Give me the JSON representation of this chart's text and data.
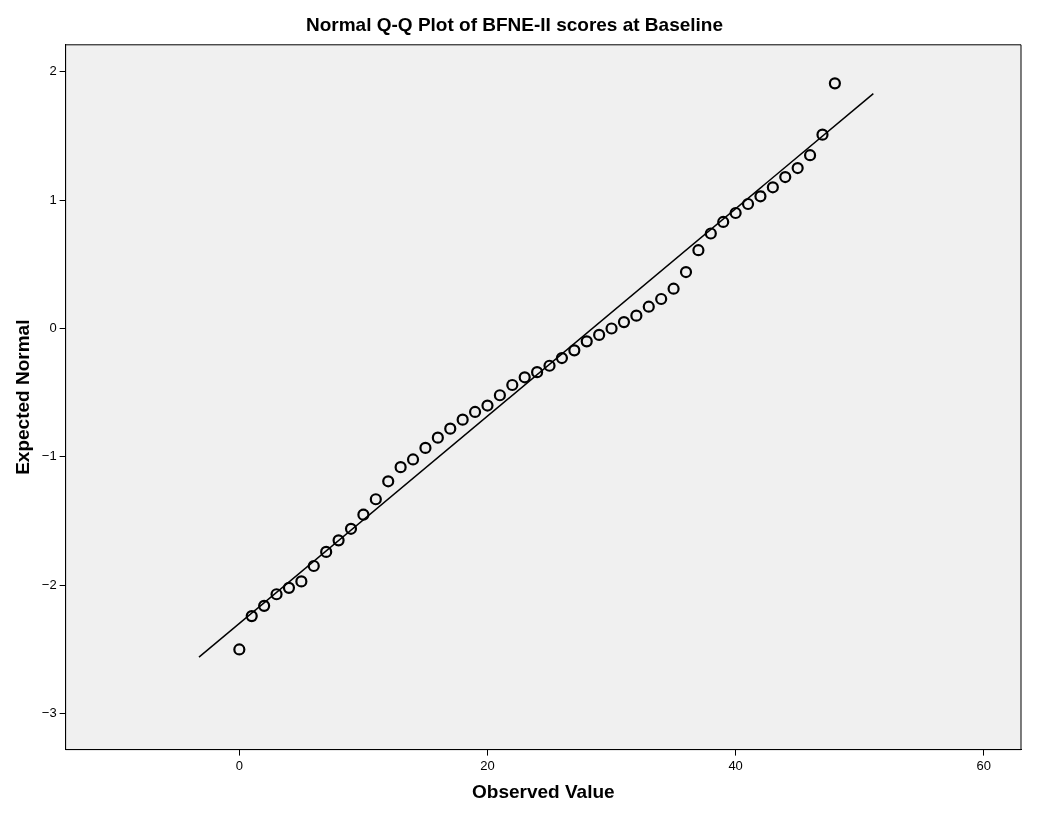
{
  "chart_data": {
    "type": "scatter",
    "title": "Normal Q-Q Plot of BFNE-II scores at Baseline",
    "xlabel": "Observed Value",
    "ylabel": "Expected Normal",
    "xlim": [
      -14,
      63
    ],
    "ylim": [
      -3.28,
      2.21
    ],
    "xticks": [
      0,
      20,
      40,
      60
    ],
    "yticks": [
      -3,
      -2,
      -1,
      0,
      1,
      2
    ],
    "grid": false,
    "legend": false,
    "series": [
      {
        "marker": "circle",
        "color": "#000000",
        "x": [
          0,
          1,
          2,
          3,
          4,
          5,
          6,
          7,
          8,
          9,
          10,
          11,
          12,
          13,
          14,
          15,
          16,
          17,
          18,
          19,
          20,
          21,
          22,
          23,
          24,
          25,
          26,
          27,
          28,
          29,
          30,
          31,
          32,
          33,
          34,
          35,
          36,
          37,
          38,
          39,
          40,
          41,
          42,
          43,
          44,
          45,
          46,
          47,
          48
        ],
        "values": [
          -2.5,
          -2.24,
          -2.16,
          -2.07,
          -2.02,
          -1.97,
          -1.85,
          -1.74,
          -1.65,
          -1.56,
          -1.45,
          -1.33,
          -1.19,
          -1.08,
          -1.02,
          -0.93,
          -0.85,
          -0.78,
          -0.71,
          -0.65,
          -0.6,
          -0.52,
          -0.44,
          -0.38,
          -0.34,
          -0.29,
          -0.23,
          -0.17,
          -0.1,
          -0.05,
          0,
          0.05,
          0.1,
          0.17,
          0.23,
          0.31,
          0.44,
          0.61,
          0.74,
          0.83,
          0.9,
          0.97,
          1.03,
          1.1,
          1.18,
          1.25,
          1.35,
          1.51,
          1.91
        ]
      },
      {
        "type": "line",
        "marker": "none",
        "color": "#000000",
        "line_style": "solid",
        "x": [
          -3.25,
          51.1
        ],
        "values": [
          -2.56,
          1.83
        ]
      }
    ]
  }
}
